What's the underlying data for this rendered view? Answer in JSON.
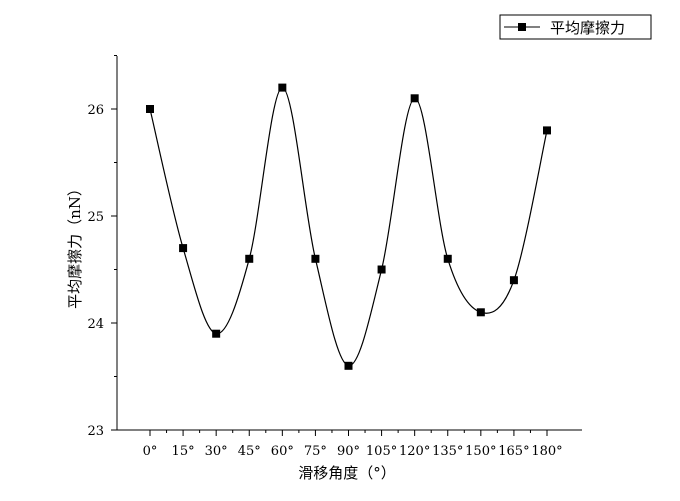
{
  "chart_data": {
    "type": "line",
    "categories": [
      "0°",
      "15°",
      "30°",
      "45°",
      "60°",
      "75°",
      "90°",
      "105°",
      "120°",
      "135°",
      "150°",
      "165°",
      "180°"
    ],
    "x": [
      0,
      15,
      30,
      45,
      60,
      75,
      90,
      105,
      120,
      135,
      150,
      165,
      180
    ],
    "series": [
      {
        "name": "平均摩擦力",
        "values": [
          26.0,
          24.7,
          23.9,
          24.6,
          26.2,
          24.6,
          23.6,
          24.5,
          26.1,
          24.6,
          24.1,
          24.4,
          25.8
        ]
      }
    ],
    "xlabel": "滑移角度（°）",
    "ylabel": "平均摩擦力（nN）",
    "ylim": [
      23,
      26.5
    ],
    "yticks": [
      23,
      24,
      25,
      26
    ],
    "grid": false,
    "legend_position": "top-right",
    "line_color": "#000000",
    "marker": "square"
  }
}
